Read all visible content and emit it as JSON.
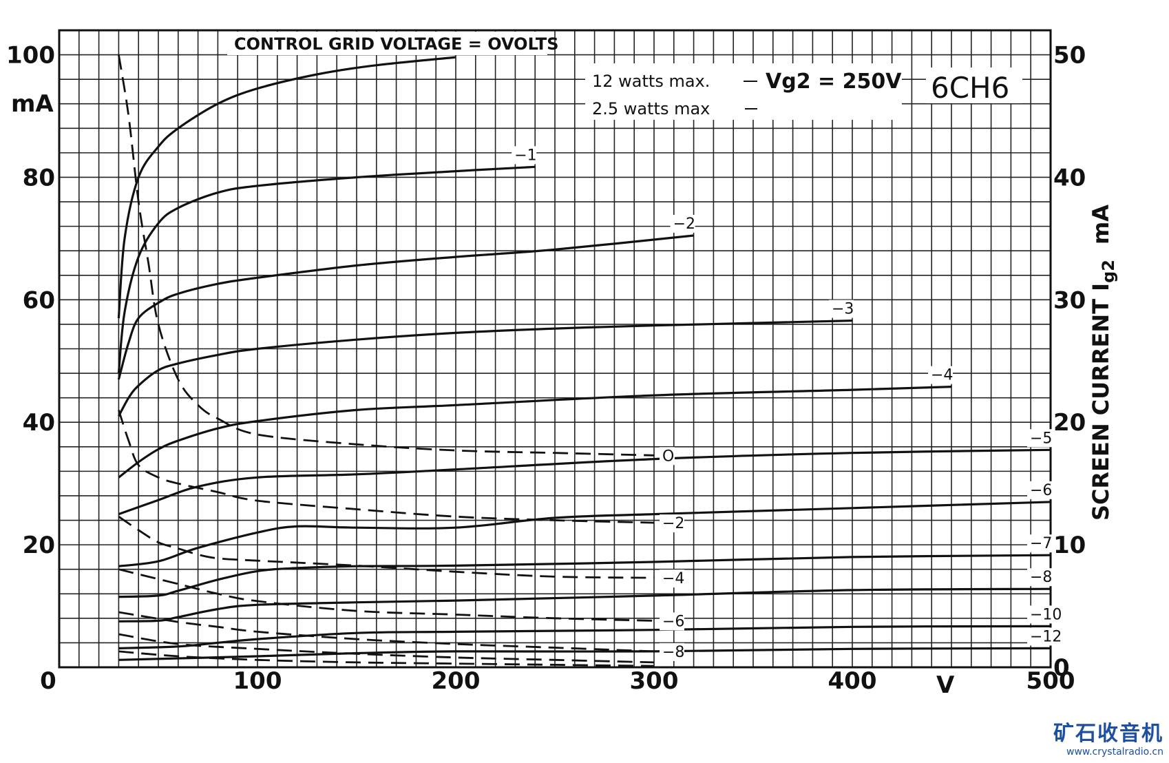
{
  "chart_data": {
    "type": "line",
    "tube": "6CH6",
    "notes": {
      "top": "CONTROL GRID VOLTAGE = OVOLTS",
      "max1": "12 watts max.",
      "max2": "2.5 watts max",
      "vg2": "Vg2 = 250V"
    },
    "left_axis": {
      "ticks": [
        "100",
        "80",
        "60",
        "40",
        "20"
      ],
      "unit": "mA",
      "range": [
        0,
        104
      ]
    },
    "right_axis": {
      "ticks": [
        "50",
        "40",
        "30",
        "20",
        "10",
        "0"
      ],
      "label": "SCREEN CURRENT Ig2 mA",
      "label_main": "SCREEN CURRENT I",
      "label_sub": "g2",
      "label_unit": "mA",
      "range": [
        0,
        52
      ]
    },
    "x_axis": {
      "ticks": [
        "0",
        "100",
        "200",
        "300",
        "400",
        "500"
      ],
      "unit": "V",
      "range": [
        0,
        500
      ]
    },
    "grid": true,
    "anode_series": [
      {
        "name": "0",
        "label": "",
        "x": [
          30,
          33,
          40,
          50,
          60,
          80,
          100,
          130,
          160,
          200
        ],
        "y": [
          57,
          70,
          80,
          85,
          88,
          92,
          94.5,
          96.8,
          98.3,
          99.6
        ]
      },
      {
        "name": "-1",
        "label": "−1",
        "x": [
          30,
          33,
          40,
          50,
          60,
          80,
          100,
          150,
          200,
          240
        ],
        "y": [
          48,
          58,
          67,
          72.5,
          75,
          77.5,
          78.6,
          80,
          81,
          81.7
        ]
      },
      {
        "name": "-2",
        "label": "−2",
        "x": [
          30,
          35,
          40,
          50,
          60,
          80,
          100,
          150,
          200,
          250,
          320
        ],
        "y": [
          47,
          53,
          57,
          59.5,
          61,
          62.6,
          63.6,
          65.6,
          67,
          68.2,
          70.5
        ]
      },
      {
        "name": "-3",
        "label": "−3",
        "x": [
          30,
          35,
          40,
          50,
          60,
          80,
          100,
          150,
          200,
          250,
          300,
          400
        ],
        "y": [
          41,
          44,
          46,
          48.5,
          49.6,
          51,
          52,
          53.5,
          54.6,
          55.3,
          55.8,
          56.6
        ]
      },
      {
        "name": "-4",
        "label": "−4",
        "x": [
          30,
          40,
          50,
          60,
          80,
          100,
          150,
          200,
          300,
          400,
          450
        ],
        "y": [
          31,
          33.5,
          35.6,
          37,
          39,
          40.2,
          42,
          42.8,
          44.4,
          45.3,
          45.8
        ]
      },
      {
        "name": "-5",
        "label": "−5",
        "x": [
          30,
          50,
          70,
          100,
          150,
          200,
          300,
          400,
          500
        ],
        "y": [
          25,
          27.3,
          29.5,
          31,
          31.5,
          32.3,
          34,
          35,
          35.5
        ]
      },
      {
        "name": "-6",
        "label": "−6",
        "x": [
          30,
          50,
          70,
          100,
          120,
          150,
          200,
          250,
          300,
          400,
          500
        ],
        "y": [
          16.5,
          17.3,
          19.5,
          22,
          23,
          22.8,
          22.8,
          24.4,
          25,
          26,
          27
        ]
      },
      {
        "name": "-7",
        "label": "−7",
        "x": [
          30,
          50,
          60,
          80,
          100,
          120,
          150,
          200,
          300,
          400,
          500
        ],
        "y": [
          11.5,
          11.7,
          12.5,
          14.3,
          15.7,
          16.2,
          16.5,
          16.6,
          17.2,
          18,
          18.3
        ]
      },
      {
        "name": "-8",
        "label": "−8",
        "x": [
          30,
          50,
          60,
          80,
          100,
          150,
          200,
          300,
          400,
          500
        ],
        "y": [
          7.5,
          7.6,
          8.2,
          9.5,
          10.2,
          10.6,
          10.9,
          11.7,
          12.6,
          12.8
        ]
      },
      {
        "name": "-10",
        "label": "−10",
        "x": [
          30,
          60,
          80,
          100,
          150,
          200,
          300,
          400,
          500
        ],
        "y": [
          3.1,
          3.4,
          4.0,
          4.6,
          5.6,
          5.8,
          6.1,
          6.6,
          6.7
        ]
      },
      {
        "name": "-12",
        "label": "−12",
        "x": [
          30,
          100,
          150,
          200,
          300,
          400,
          500
        ],
        "y": [
          1.2,
          1.8,
          2.3,
          2.6,
          2.6,
          3.0,
          3.1
        ]
      }
    ],
    "screen_series": [
      {
        "name": "0",
        "label": "O",
        "x": [
          30,
          35,
          40,
          45,
          50,
          60,
          70,
          80,
          100,
          150,
          200,
          250,
          300
        ],
        "y": [
          50,
          45,
          38,
          33,
          28,
          23.5,
          21.4,
          20.3,
          19,
          18.2,
          17.7,
          17.5,
          17.3
        ]
      },
      {
        "name": "-2",
        "label": "−2",
        "x": [
          30,
          35,
          40,
          50,
          60,
          80,
          100,
          150,
          200,
          250,
          300
        ],
        "y": [
          21,
          18.5,
          16.5,
          15.5,
          15,
          14.3,
          13.6,
          12.9,
          12.3,
          12,
          11.8
        ]
      },
      {
        "name": "-4",
        "label": "−4",
        "x": [
          30,
          40,
          50,
          60,
          70,
          80,
          100,
          150,
          200,
          250,
          300
        ],
        "y": [
          12.3,
          11.2,
          10.2,
          9.7,
          9.2,
          8.9,
          8.7,
          8.3,
          7.8,
          7.4,
          7.3
        ]
      },
      {
        "name": "-6",
        "label": "−6",
        "x": [
          30,
          40,
          60,
          80,
          100,
          150,
          200,
          250,
          300
        ],
        "y": [
          8,
          7.6,
          6.8,
          6.0,
          5.4,
          4.6,
          4.3,
          4.0,
          3.8
        ]
      },
      {
        "name": "-8",
        "label": "−8",
        "x": [
          30,
          60,
          80,
          100,
          150,
          200,
          250,
          300
        ],
        "y": [
          4.5,
          3.7,
          3.3,
          2.9,
          2.3,
          1.9,
          1.6,
          1.3
        ]
      },
      {
        "name": "-10",
        "label": "",
        "x": [
          30,
          60,
          100,
          150,
          200,
          250,
          300
        ],
        "y": [
          2.7,
          1.9,
          1.5,
          1.1,
          0.8,
          0.6,
          0.4
        ]
      },
      {
        "name": "-12",
        "label": "",
        "x": [
          30,
          60,
          100,
          150,
          200,
          250,
          300
        ],
        "y": [
          1.3,
          0.9,
          0.6,
          0.4,
          0.3,
          0.2,
          0.1
        ]
      }
    ]
  },
  "watermark": {
    "text": "矿石收音机",
    "url": "www.crystalradio.cn"
  }
}
